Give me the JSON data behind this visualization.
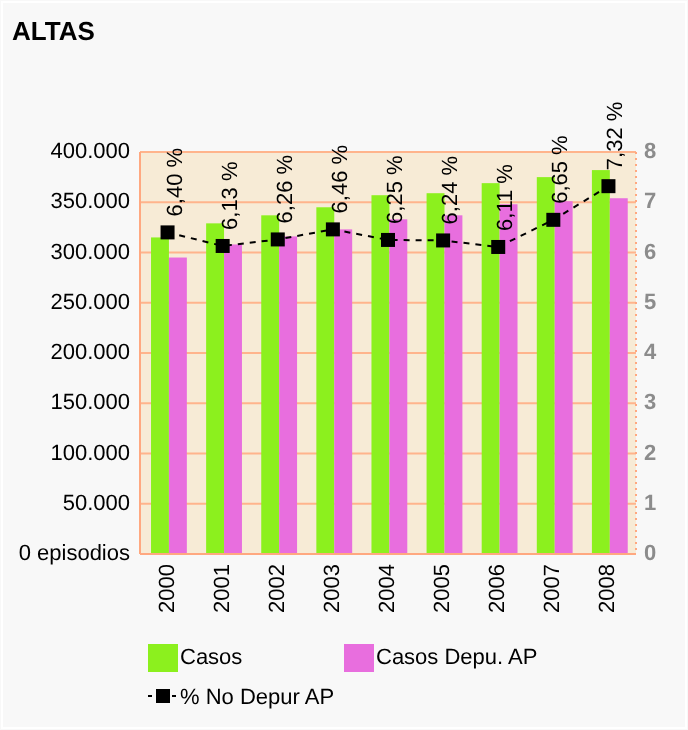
{
  "chart_data": {
    "type": "bar",
    "title": "ALTAS",
    "categories": [
      "2000",
      "2001",
      "2002",
      "2003",
      "2004",
      "2005",
      "2006",
      "2007",
      "2008"
    ],
    "series": [
      {
        "name": "Casos",
        "color": "#8cf01e",
        "values": [
          315000,
          329000,
          337000,
          345000,
          357000,
          359000,
          369000,
          375000,
          382000
        ]
      },
      {
        "name": "Casos Depu. AP",
        "color": "#e86ede",
        "values": [
          295000,
          308000,
          316000,
          323000,
          333000,
          337000,
          348000,
          351000,
          354000
        ]
      },
      {
        "name": "% No Depur AP",
        "type": "line",
        "axis": "y2",
        "color": "#000000",
        "marker": "square",
        "line_style": "dashed",
        "values": [
          6.4,
          6.13,
          6.26,
          6.46,
          6.25,
          6.24,
          6.11,
          6.65,
          7.32
        ],
        "value_labels": [
          "6,40 %",
          "6,13 %",
          "6,26 %",
          "6,46 %",
          "6,25 %",
          "6,24 %",
          "6,11 %",
          "6,65 %",
          "7,32 %"
        ]
      }
    ],
    "ylim": [
      0,
      400000
    ],
    "yticks": [
      {
        "value": 0,
        "label": "0 episodios"
      },
      {
        "value": 50000,
        "label": "50.000"
      },
      {
        "value": 100000,
        "label": "100.000"
      },
      {
        "value": 150000,
        "label": "150.000"
      },
      {
        "value": 200000,
        "label": "200.000"
      },
      {
        "value": 250000,
        "label": "250.000"
      },
      {
        "value": 300000,
        "label": "300.000"
      },
      {
        "value": 350000,
        "label": "350.000"
      },
      {
        "value": 400000,
        "label": "400.000"
      }
    ],
    "y2lim": [
      0,
      8
    ],
    "y2ticks": [
      0,
      1,
      2,
      3,
      4,
      5,
      6,
      7,
      8
    ],
    "grid": "y",
    "legend": "bottom"
  }
}
